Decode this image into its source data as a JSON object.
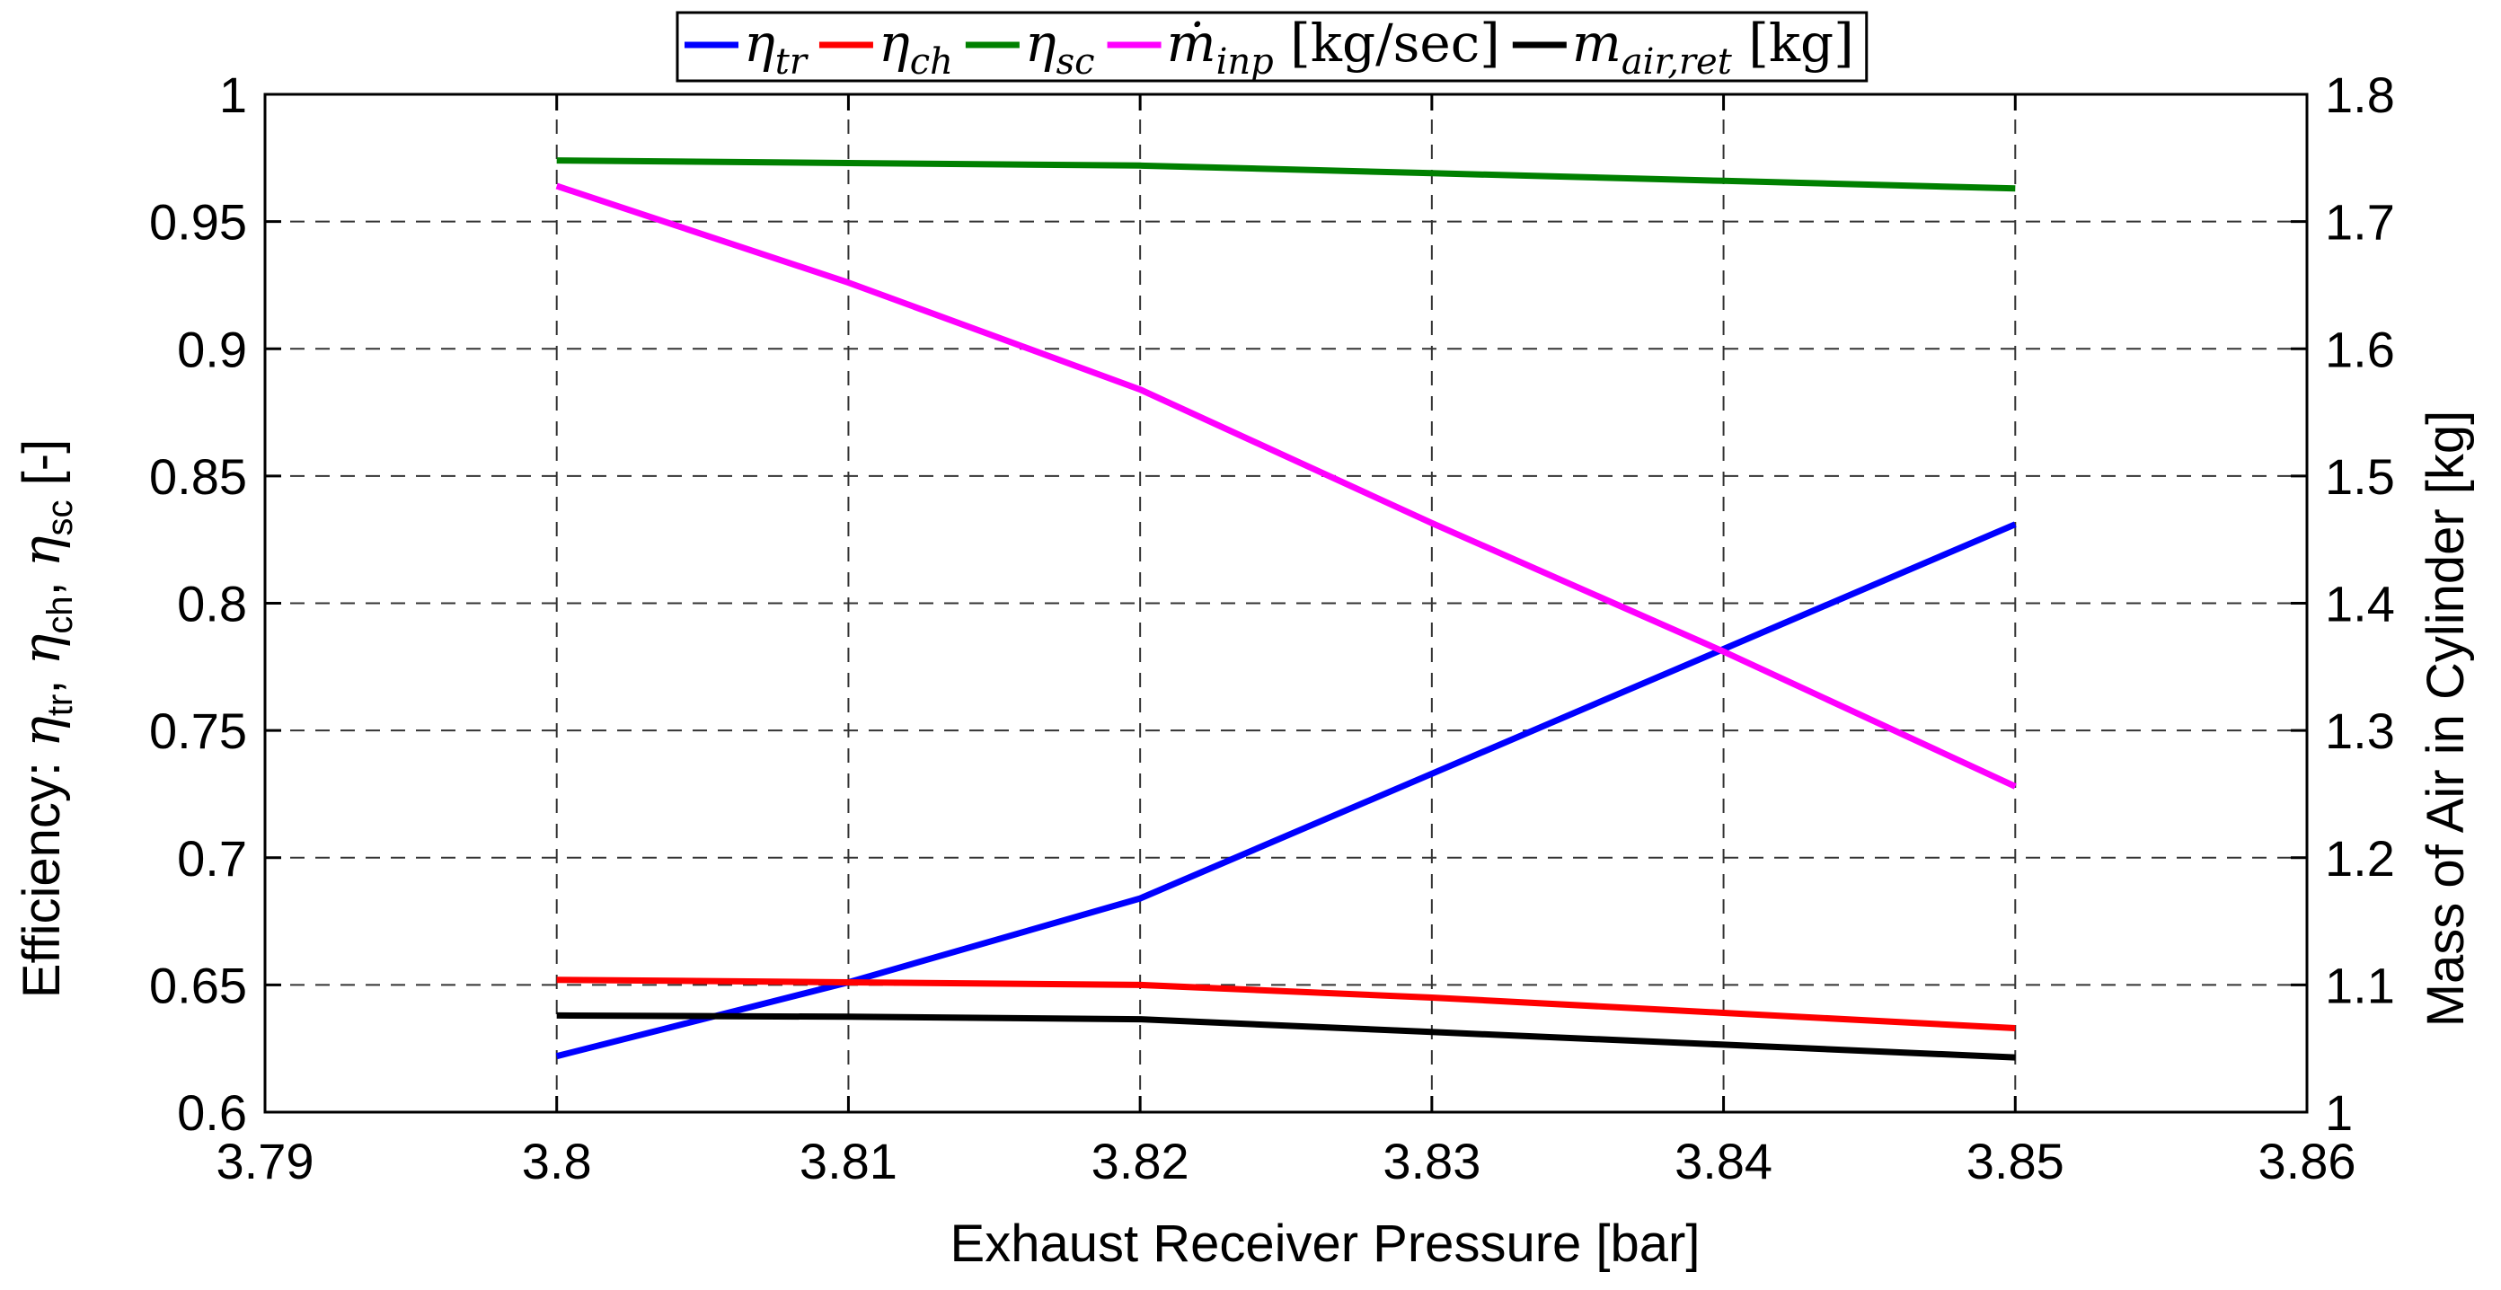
{
  "chart_data": {
    "type": "line",
    "xlabel": "Exhaust Receiver Pressure  [bar]",
    "ylabel_left": {
      "prefix": "Efficiency: ",
      "terms": [
        {
          "sym": "η",
          "sub": "tr",
          "sep": ",  "
        },
        {
          "sym": "η",
          "sub": "ch",
          "sep": ",  "
        },
        {
          "sym": "η",
          "sub": "sc",
          "sep": " [-]"
        }
      ]
    },
    "ylabel_right": "Mass of Air in Cylinder [kg]",
    "xlim": [
      3.79,
      3.86
    ],
    "ylim_left": [
      0.6,
      1.0
    ],
    "ylim_right": [
      1.0,
      1.8
    ],
    "x_ticks": [
      "3.79",
      "3.8",
      "3.81",
      "3.82",
      "3.83",
      "3.84",
      "3.85",
      "3.86"
    ],
    "y_ticks_left": [
      "0.6",
      "0.65",
      "0.7",
      "0.75",
      "0.8",
      "0.85",
      "0.9",
      "0.95",
      "1"
    ],
    "y_ticks_right": [
      "1",
      "1.1",
      "1.2",
      "1.3",
      "1.4",
      "1.5",
      "1.6",
      "1.7",
      "1.8"
    ],
    "grid": true,
    "legend_position": "top-center",
    "series": [
      {
        "name": "η_tr",
        "label": {
          "sym": "η",
          "sub": "tr",
          "unit": ""
        },
        "axis": "left",
        "color": "#0000ff",
        "x": [
          3.8,
          3.81,
          3.82,
          3.83,
          3.84,
          3.85
        ],
        "y": [
          0.622,
          0.651,
          0.684,
          0.733,
          0.782,
          0.831
        ]
      },
      {
        "name": "η_ch",
        "label": {
          "sym": "η",
          "sub": "ch",
          "unit": ""
        },
        "axis": "left",
        "color": "#ff0000",
        "x": [
          3.8,
          3.81,
          3.82,
          3.83,
          3.84,
          3.85
        ],
        "y": [
          0.652,
          0.651,
          0.65,
          0.645,
          0.639,
          0.633
        ]
      },
      {
        "name": "η_sc",
        "label": {
          "sym": "η",
          "sub": "sc",
          "unit": ""
        },
        "axis": "left",
        "color": "#008000",
        "x": [
          3.8,
          3.81,
          3.82,
          3.83,
          3.84,
          3.85
        ],
        "y": [
          0.974,
          0.973,
          0.972,
          0.969,
          0.966,
          0.963
        ]
      },
      {
        "name": "ṁ_inp [kg/sec]",
        "label": {
          "sym": "ṁ",
          "sub": "inp",
          "unit": " [kg/sec]"
        },
        "axis": "right",
        "color": "#ff00ff",
        "x": [
          3.8,
          3.81,
          3.82,
          3.83,
          3.84,
          3.85
        ],
        "y": [
          1.728,
          1.652,
          1.568,
          1.463,
          1.362,
          1.256
        ]
      },
      {
        "name": "m_air,ret [kg]",
        "label": {
          "sym": "m",
          "sub": "air,ret",
          "unit": " [kg]"
        },
        "axis": "right",
        "color": "#000000",
        "x": [
          3.8,
          3.81,
          3.82,
          3.83,
          3.84,
          3.85
        ],
        "y": [
          1.076,
          1.075,
          1.073,
          1.063,
          1.053,
          1.043
        ]
      }
    ]
  }
}
